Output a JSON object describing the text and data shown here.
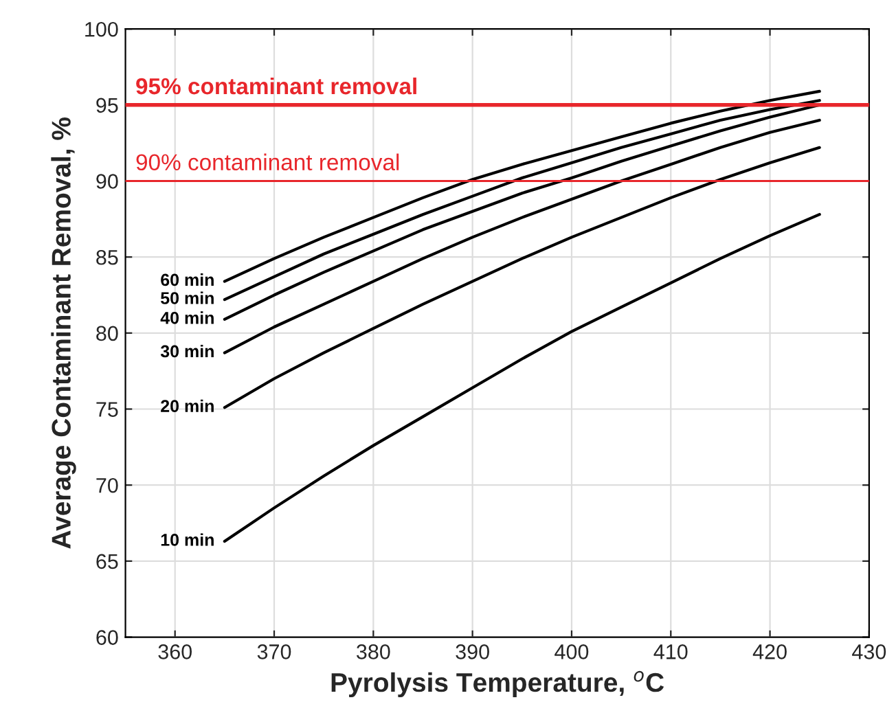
{
  "chart_data": {
    "type": "line",
    "xlabel": "Pyrolysis Temperature, $^{o}$C",
    "ylabel": "Average Contaminant Removal, %",
    "x": [
      365,
      370,
      375,
      380,
      385,
      390,
      395,
      400,
      405,
      410,
      415,
      420,
      425
    ],
    "series": [
      {
        "name": "10 min",
        "color": "#000000",
        "values": [
          66.3,
          68.5,
          70.6,
          72.6,
          74.5,
          76.4,
          78.3,
          80.1,
          81.7,
          83.3,
          84.9,
          86.4,
          87.8
        ]
      },
      {
        "name": "20 min",
        "color": "#000000",
        "values": [
          75.1,
          77.0,
          78.7,
          80.3,
          81.9,
          83.4,
          84.9,
          86.3,
          87.6,
          88.9,
          90.1,
          91.2,
          92.2
        ]
      },
      {
        "name": "30 min",
        "color": "#000000",
        "values": [
          78.7,
          80.4,
          81.9,
          83.4,
          84.9,
          86.3,
          87.6,
          88.8,
          90.0,
          91.1,
          92.2,
          93.2,
          94.0
        ]
      },
      {
        "name": "40 min",
        "color": "#000000",
        "values": [
          80.9,
          82.5,
          84.0,
          85.4,
          86.8,
          88.0,
          89.2,
          90.2,
          91.3,
          92.3,
          93.3,
          94.2,
          95.0
        ]
      },
      {
        "name": "50 min",
        "color": "#000000",
        "values": [
          82.2,
          83.7,
          85.2,
          86.5,
          87.8,
          89.0,
          90.2,
          91.2,
          92.2,
          93.1,
          94.0,
          94.7,
          95.3
        ]
      },
      {
        "name": "60 min",
        "color": "#000000",
        "values": [
          83.4,
          84.9,
          86.3,
          87.6,
          88.9,
          90.1,
          91.1,
          92.0,
          92.9,
          93.8,
          94.6,
          95.3,
          95.9
        ]
      }
    ],
    "ref_lines": [
      {
        "axis": "y",
        "value": 95,
        "label": "95% contaminant removal",
        "color": "#e8262b"
      },
      {
        "axis": "y",
        "value": 90,
        "label": "90% contaminant removal",
        "color": "#e8262b"
      }
    ],
    "xlim": [
      355,
      430
    ],
    "xticks": [
      360,
      370,
      380,
      390,
      400,
      410,
      420,
      430
    ],
    "ylim": [
      60,
      100
    ],
    "yticks": [
      60,
      65,
      70,
      75,
      80,
      85,
      90,
      95,
      100
    ],
    "grid": true,
    "legend": false,
    "marker": "none",
    "line_style": "solid"
  }
}
